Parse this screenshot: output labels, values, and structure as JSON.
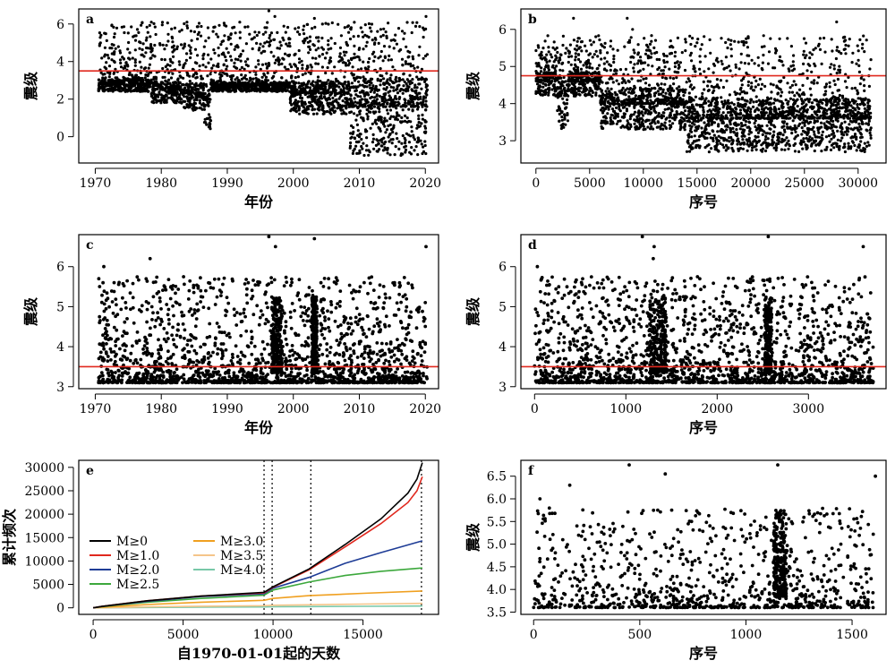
{
  "chart_data": [
    {
      "panel": "a",
      "type": "scatter",
      "xlabel": "年份",
      "ylabel": "震级",
      "xlim": [
        1967.5,
        2022
      ],
      "ylim": [
        -1.4,
        6.8
      ],
      "xticks": [
        1970,
        1980,
        1990,
        2000,
        2010,
        2020
      ],
      "yticks": [
        0,
        2,
        4,
        6
      ],
      "threshold_line": 3.5,
      "line_color": "#e0281e",
      "point_color": "#000000",
      "segments": [
        {
          "x": [
            1970.5,
            1978.5
          ],
          "floor": 2.4,
          "median": 2.8
        },
        {
          "x": [
            1978.5,
            1983.0
          ],
          "floor": 1.8,
          "median": 2.5
        },
        {
          "x": [
            1983.0,
            1986.5
          ],
          "floor": 1.4,
          "median": 2.3
        },
        {
          "x": [
            1986.5,
            1987.5
          ],
          "floor": 0.4,
          "median": 1.6
        },
        {
          "x": [
            1987.5,
            1999.5
          ],
          "floor": 2.4,
          "median": 2.7
        },
        {
          "x": [
            1999.5,
            2008.5
          ],
          "floor": 1.2,
          "median": 2.3
        },
        {
          "x": [
            2008.5,
            2020.3
          ],
          "floor": -1.0,
          "median": 1.6
        }
      ],
      "max_points": [
        [
          1996.3,
          6.7
        ],
        [
          1997.2,
          6.4
        ],
        [
          2003.2,
          6.3
        ],
        [
          2020.1,
          6.4
        ],
        [
          1978.5,
          6.1
        ]
      ]
    },
    {
      "panel": "b",
      "type": "scatter",
      "xlabel": "序号",
      "ylabel": "震级",
      "xlim": [
        -1400,
        32600
      ],
      "ylim": [
        2.4,
        6.55
      ],
      "xticks": [
        0,
        5000,
        10000,
        15000,
        20000,
        25000,
        30000
      ],
      "yticks": [
        3,
        4,
        5,
        6
      ],
      "threshold_line": 4.75,
      "line_color": "#e0281e",
      "point_color": "#000000",
      "segments": [
        {
          "x": [
            0,
            2000
          ],
          "floor": 4.2,
          "median": 4.6
        },
        {
          "x": [
            2000,
            3000
          ],
          "floor": 3.3,
          "median": 4.2
        },
        {
          "x": [
            3000,
            6000
          ],
          "floor": 4.2,
          "median": 4.6
        },
        {
          "x": [
            6000,
            14000
          ],
          "floor": 3.3,
          "median": 4.0
        },
        {
          "x": [
            14000,
            31200
          ],
          "floor": 2.7,
          "median": 3.6
        }
      ],
      "max_points": [
        [
          3500,
          6.3
        ],
        [
          8500,
          6.3
        ],
        [
          28000,
          6.2
        ],
        [
          9000,
          6.0
        ]
      ]
    },
    {
      "panel": "c",
      "type": "scatter",
      "xlabel": "年份",
      "ylabel": "震级",
      "xlim": [
        1967.5,
        2022
      ],
      "ylim": [
        2.95,
        6.8
      ],
      "xticks": [
        1970,
        1980,
        1990,
        2000,
        2010,
        2020
      ],
      "yticks": [
        3,
        4,
        5,
        6
      ],
      "threshold_line": 3.5,
      "line_color": "#e0281e",
      "point_color": "#000000",
      "max_points": [
        [
          1996.3,
          6.75
        ],
        [
          2003.2,
          6.7
        ],
        [
          2020.1,
          6.5
        ],
        [
          1997.3,
          6.5
        ],
        [
          1978.3,
          6.2
        ],
        [
          1971.3,
          6.0
        ]
      ]
    },
    {
      "panel": "d",
      "type": "scatter",
      "xlabel": "序号",
      "ylabel": "震级",
      "xlim": [
        -150,
        3850
      ],
      "ylim": [
        2.95,
        6.8
      ],
      "xticks": [
        0,
        1000,
        2000,
        3000
      ],
      "yticks": [
        3,
        4,
        5,
        6
      ],
      "threshold_line": 3.5,
      "line_color": "#e0281e",
      "point_color": "#000000",
      "max_points": [
        [
          1180,
          6.75
        ],
        [
          2560,
          6.75
        ],
        [
          3600,
          6.5
        ],
        [
          1310,
          6.5
        ],
        [
          30,
          6.0
        ],
        [
          1300,
          6.2
        ]
      ]
    },
    {
      "panel": "e",
      "type": "line",
      "xlabel": "自1970-01-01起的天数",
      "ylabel": "累计频次",
      "xlim": [
        -800,
        19200
      ],
      "ylim": [
        -1400,
        31500
      ],
      "xticks": [
        0,
        5000,
        10000,
        15000
      ],
      "yticks": [
        0,
        5000,
        10000,
        15000,
        20000,
        25000,
        30000
      ],
      "vlines": [
        9500,
        9950,
        12100,
        18250
      ],
      "legend": "left",
      "series": [
        {
          "name": "M≥0",
          "color": "#000000",
          "x": [
            0,
            500,
            3000,
            6000,
            9500,
            10000,
            12000,
            14000,
            16000,
            17500,
            18000,
            18300
          ],
          "values": [
            0,
            300,
            1500,
            2500,
            3300,
            4500,
            8300,
            13500,
            19000,
            24500,
            27500,
            31000
          ]
        },
        {
          "name": "M≥1.0",
          "color": "#e0281e",
          "x": [
            0,
            500,
            3000,
            6000,
            9500,
            10000,
            12000,
            14000,
            16000,
            17500,
            18000,
            18300
          ],
          "values": [
            0,
            300,
            1500,
            2500,
            3200,
            4400,
            8100,
            13000,
            18000,
            22500,
            25000,
            28000
          ]
        },
        {
          "name": "M≥2.0",
          "color": "#1e3c96",
          "x": [
            0,
            500,
            3000,
            6000,
            9500,
            10000,
            12000,
            14000,
            16000,
            18300
          ],
          "values": [
            0,
            300,
            1400,
            2400,
            3000,
            4200,
            6500,
            9500,
            11800,
            14300
          ]
        },
        {
          "name": "M≥2.5",
          "color": "#3ca83c",
          "x": [
            0,
            500,
            3000,
            6000,
            9500,
            10000,
            12000,
            14000,
            16000,
            18300
          ],
          "values": [
            0,
            250,
            1200,
            2000,
            2700,
            3800,
            5500,
            6900,
            7800,
            8500
          ]
        },
        {
          "name": "M≥3.0",
          "color": "#f0a020",
          "x": [
            0,
            3000,
            6000,
            9500,
            10000,
            12000,
            15000,
            18300
          ],
          "values": [
            0,
            700,
            1200,
            1600,
            2000,
            2600,
            3100,
            3600
          ]
        },
        {
          "name": "M≥3.5",
          "color": "#f5c58a",
          "x": [
            0,
            3000,
            6000,
            9500,
            10000,
            12000,
            15000,
            18300
          ],
          "values": [
            0,
            200,
            350,
            450,
            550,
            650,
            800,
            950
          ]
        },
        {
          "name": "M≥4.0",
          "color": "#78c8a8",
          "x": [
            0,
            3000,
            6000,
            9500,
            10000,
            12000,
            15000,
            18300
          ],
          "values": [
            0,
            80,
            140,
            180,
            220,
            260,
            320,
            380
          ]
        }
      ]
    },
    {
      "panel": "f",
      "type": "scatter",
      "xlabel": "序号",
      "ylabel": "震级",
      "xlim": [
        -60,
        1660
      ],
      "ylim": [
        3.45,
        6.85
      ],
      "xticks": [
        0,
        500,
        1000,
        1500
      ],
      "yticks": [
        3.5,
        4.0,
        4.5,
        5.0,
        5.5,
        6.0,
        6.5
      ],
      "ytick_labels": [
        "3.5",
        "4.0",
        "4.5",
        "5.0",
        "5.5",
        "6.0",
        "6.5"
      ],
      "point_color": "#000000",
      "max_points": [
        [
          450,
          6.75
        ],
        [
          1150,
          6.75
        ],
        [
          1610,
          6.5
        ],
        [
          620,
          6.55
        ],
        [
          30,
          6.0
        ],
        [
          170,
          6.3
        ]
      ]
    }
  ]
}
